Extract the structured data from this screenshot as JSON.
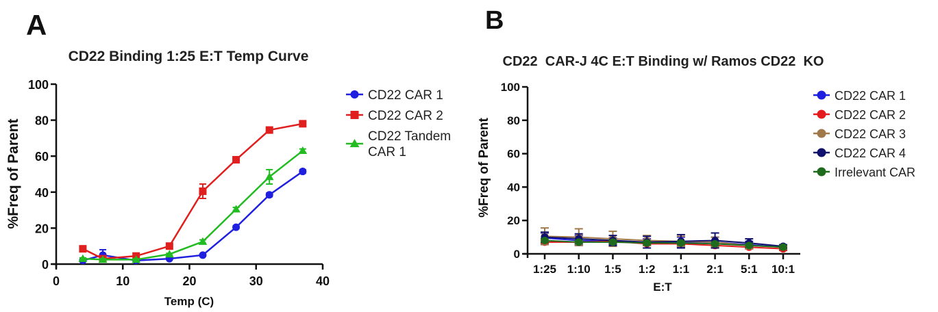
{
  "panels": {
    "a": {
      "letter": "A"
    },
    "b": {
      "letter": "B"
    }
  },
  "chart_data": [
    {
      "type": "line",
      "title": "CD22 Binding 1:25 E:T Temp Curve",
      "xlabel": "Temp (C)",
      "ylabel": "%Freq of Parent",
      "xlim": [
        0,
        40
      ],
      "ylim": [
        0,
        100
      ],
      "xticks": [
        0,
        10,
        20,
        30,
        40
      ],
      "yticks": [
        0,
        20,
        40,
        60,
        80,
        100
      ],
      "grid": false,
      "legend_position": "right",
      "x": [
        4,
        7,
        12,
        17,
        22,
        27,
        32,
        37
      ],
      "series": [
        {
          "name": "CD22 CAR 1",
          "color": "#1f1fe0",
          "marker": "circle",
          "values": [
            2,
            5,
            2,
            3,
            5,
            20.5,
            38.5,
            51.5
          ],
          "errors": [
            0.5,
            3,
            0.5,
            0.5,
            0.5,
            0.8,
            1,
            1
          ]
        },
        {
          "name": "CD22 CAR 2",
          "color": "#e01f1f",
          "marker": "square",
          "values": [
            8.5,
            3,
            4.5,
            10,
            40.5,
            58,
            74.5,
            78
          ],
          "errors": [
            0.5,
            1.5,
            0.5,
            1,
            4,
            1,
            1,
            0.5
          ]
        },
        {
          "name": "CD22 Tandem CAR 1",
          "legend_lines": [
            "CD22 Tandem",
            "CAR 1"
          ],
          "color": "#22bb22",
          "marker": "triangle",
          "values": [
            3,
            2.5,
            2.5,
            5.5,
            12.5,
            30.5,
            48.5,
            63
          ],
          "errors": [
            0.5,
            0.5,
            0.5,
            0.5,
            1,
            1,
            4,
            1
          ]
        }
      ]
    },
    {
      "type": "line",
      "title": "CD22  CAR-J 4C E:T Binding w/ Ramos CD22  KO",
      "xlabel": "E:T",
      "ylabel": "%Freq of Parent",
      "ylim": [
        0,
        100
      ],
      "yticks": [
        0,
        20,
        40,
        60,
        80,
        100
      ],
      "categories": [
        "1:25",
        "1:10",
        "1:5",
        "1:2",
        "1:1",
        "2:1",
        "5:1",
        "10:1"
      ],
      "grid": false,
      "legend_position": "right",
      "series": [
        {
          "name": "CD22 CAR 1",
          "color": "#1f1fe0",
          "marker": "circle",
          "values": [
            9.5,
            8,
            7.5,
            7,
            7,
            7,
            5.5,
            4
          ],
          "errors": [
            3,
            3,
            2,
            2,
            3,
            3,
            2,
            1
          ]
        },
        {
          "name": "CD22 CAR 2",
          "color": "#e41a1c",
          "marker": "circle",
          "values": [
            7,
            7,
            7.5,
            6,
            6,
            5,
            4,
            3
          ],
          "errors": [
            1,
            1,
            1,
            1,
            1,
            1,
            1,
            1
          ]
        },
        {
          "name": "CD22 CAR 3",
          "color": "#a0784a",
          "marker": "circle",
          "values": [
            10.5,
            10,
            9,
            8,
            7.5,
            7,
            5,
            4
          ],
          "errors": [
            5,
            5,
            4.5,
            3,
            3,
            3,
            2,
            1
          ]
        },
        {
          "name": "CD22 CAR 4",
          "color": "#10106e",
          "marker": "circle",
          "values": [
            10,
            9,
            8,
            7,
            7.5,
            8,
            6.5,
            4.5
          ],
          "errors": [
            3,
            3,
            3,
            3.5,
            4,
            4.5,
            2.5,
            1
          ]
        },
        {
          "name": "Irrelevant CAR",
          "color": "#1e6b1e",
          "marker": "circle",
          "values": [
            8,
            7,
            7,
            6.5,
            6.5,
            6,
            5,
            4
          ],
          "errors": [
            1,
            1,
            1,
            1,
            1,
            1,
            1,
            1
          ]
        }
      ]
    }
  ]
}
